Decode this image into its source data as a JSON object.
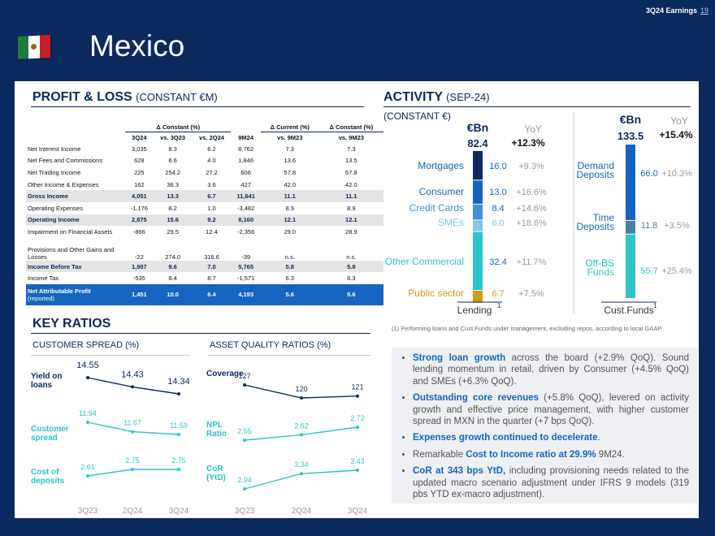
{
  "header": {
    "page_label": "3Q24 Earnings",
    "page_number": "19",
    "title": "Mexico"
  },
  "pl": {
    "title": "PROFIT & LOSS",
    "subtitle": "(CONSTANT €M)",
    "group_headers": [
      "Δ Constant (%)",
      "Δ Current (%)",
      "Δ Constant (%)"
    ],
    "columns": [
      "3Q24",
      "vs. 3Q23",
      "vs. 2Q24",
      "9M24",
      "vs. 9M23",
      "vs. 9M23"
    ],
    "rows": [
      {
        "label": "Net Interest Income",
        "v": [
          "3,035",
          "8.3",
          "6.2",
          "8,762",
          "7.3",
          "7.3"
        ]
      },
      {
        "label": "Net Fees and Commissions",
        "v": [
          "628",
          "6.6",
          "4.0",
          "1,846",
          "13.6",
          "13.5"
        ]
      },
      {
        "label": "Net Trading Income",
        "v": [
          "225",
          "254.2",
          "27.2",
          "606",
          "57.8",
          "57.8"
        ]
      },
      {
        "label": "Other Income & Expenses",
        "v": [
          "162",
          "36.3",
          "3.6",
          "427",
          "42.0",
          "42.0"
        ]
      },
      {
        "label": "Gross Income",
        "v": [
          "4,051",
          "13.3",
          "6.7",
          "11,641",
          "11.1",
          "11.1"
        ]
      },
      {
        "label": "Operating Expenses",
        "v": [
          "-1,176",
          "8.2",
          "1.0",
          "-3,482",
          "8.9",
          "8.9"
        ]
      },
      {
        "label": "Operating Income",
        "v": [
          "2,875",
          "15.6",
          "9.2",
          "8,160",
          "12.1",
          "12.1"
        ]
      },
      {
        "label": "Impairment on Financial Assets",
        "v": [
          "-866",
          "29.5",
          "12.4",
          "-2,356",
          "29.0",
          "28.9"
        ]
      },
      {
        "label": "Provisions and Other Gains and Losses",
        "v": [
          "-22",
          "274.0",
          "316.6",
          "-39",
          "n.s.",
          "n.s."
        ]
      },
      {
        "label": "Income Before Tax",
        "v": [
          "1,987",
          "9.6",
          "7.0",
          "5,765",
          "5.8",
          "5.8"
        ]
      },
      {
        "label": "Income Tax",
        "v": [
          "-535",
          "8.4",
          "8.7",
          "-1,571",
          "6.3",
          "6.3"
        ]
      },
      {
        "label": "Net Attributable Profit",
        "label2": "(reported)",
        "v": [
          "1,451",
          "10.0",
          "6.4",
          "4,193",
          "5.6",
          "5.6"
        ]
      }
    ]
  },
  "activity": {
    "title": "ACTIVITY",
    "title_suffix": "(SEP-24)",
    "subtitle": "(CONSTANT €)",
    "lending": {
      "unit": "€Bn",
      "yoy_label": "YoY",
      "total": "82.4",
      "total_yoy": "+12.3%",
      "axis_label": "Lending",
      "axis_sup": "1",
      "items": [
        {
          "label": "Mortgages",
          "value": 16.0,
          "yoy": "+9.3%",
          "color": "#0b2a5e"
        },
        {
          "label": "Consumer",
          "value": 13.0,
          "yoy": "+16.6%",
          "color": "#1565c0"
        },
        {
          "label": "Credit Cards",
          "value": 8.4,
          "yoy": "+14.6%",
          "color": "#3f8fd9"
        },
        {
          "label": "SMEs",
          "value": 6.0,
          "yoy": "+18.6%",
          "color": "#7fc8f0"
        },
        {
          "label": "Other Commercial",
          "value": 32.4,
          "yoy": "+11.7%",
          "color": "#2ec4c6"
        },
        {
          "label": "Public sector",
          "value": 6.7,
          "yoy": "+7.5%",
          "color": "#d39b1a"
        }
      ]
    },
    "funds": {
      "unit": "€Bn",
      "yoy_label": "YoY",
      "total": "133.5",
      "total_yoy": "+15.4%",
      "axis_label": "Cust.Funds",
      "axis_sup": "1",
      "items": [
        {
          "label": "Demand Deposits",
          "value": 66.0,
          "yoy": "+10.3%",
          "color": "#1565c0"
        },
        {
          "label": "Time Deposits",
          "value": 11.8,
          "yoy": "+3.5%",
          "color": "#4a7fa3"
        },
        {
          "label": "Off-BS Funds",
          "value": 55.7,
          "yoy": "+25.4%",
          "color": "#2ec4c6"
        }
      ]
    },
    "footnote": "(1) Performing loans and Cust.Funds under management, excluding repos, according to local GAAP."
  },
  "ratios": {
    "title": "KEY RATIOS",
    "spread_title": "CUSTOMER SPREAD (%)",
    "asset_title": "ASSET QUALITY RATIOS (%)",
    "quarters": [
      "3Q23",
      "2Q24",
      "3Q24"
    ],
    "chart_data": [
      {
        "type": "line",
        "series": [
          {
            "name": "Yield on loans",
            "values": [
              14.55,
              14.43,
              14.34
            ]
          }
        ]
      },
      {
        "type": "line",
        "series": [
          {
            "name": "Customer spread",
            "values": [
              11.94,
              11.67,
              11.59
            ]
          }
        ]
      },
      {
        "type": "line",
        "series": [
          {
            "name": "Cost of deposits",
            "values": [
              2.61,
              2.75,
              2.75
            ]
          }
        ]
      },
      {
        "type": "line",
        "series": [
          {
            "name": "Coverage",
            "values": [
              127,
              120,
              121
            ]
          }
        ]
      },
      {
        "type": "line",
        "series": [
          {
            "name": "NPL Ratio",
            "values": [
              2.55,
              2.62,
              2.72
            ]
          }
        ]
      },
      {
        "type": "line",
        "series": [
          {
            "name": "CoR (YtD)",
            "values": [
              2.94,
              3.34,
              3.43
            ]
          }
        ]
      }
    ]
  },
  "bullets": [
    {
      "bold": "Strong loan growth",
      "text": " across the board (+2.9% QoQ). Sound lending momentum in retail, driven by Consumer (+4.5% QoQ) and SMEs (+6.3% QoQ)."
    },
    {
      "bold": "Outstanding core revenues",
      "text": " (+5.8% QoQ), levered on activity growth and effective price management, with higher customer spread in MXN in the quarter (+7 bps QoQ)."
    },
    {
      "bold": "Expenses growth continued to decelerate",
      "text": "."
    },
    {
      "pre": "Remarkable ",
      "bold": "Cost to Income ratio at 29.9%",
      "text": " 9M24."
    },
    {
      "bold": "CoR at 343 bps YtD,",
      "text": " including provisioning needs related to the updated macro scenario adjustment under IFRS 9 models (319 pbs YTD ex-macro adjustment)."
    }
  ],
  "colors": {
    "navy": "#0b2a5e",
    "accent": "#1565c0",
    "teal": "#2ec4c6",
    "dark_line": "#0b2a5e"
  }
}
